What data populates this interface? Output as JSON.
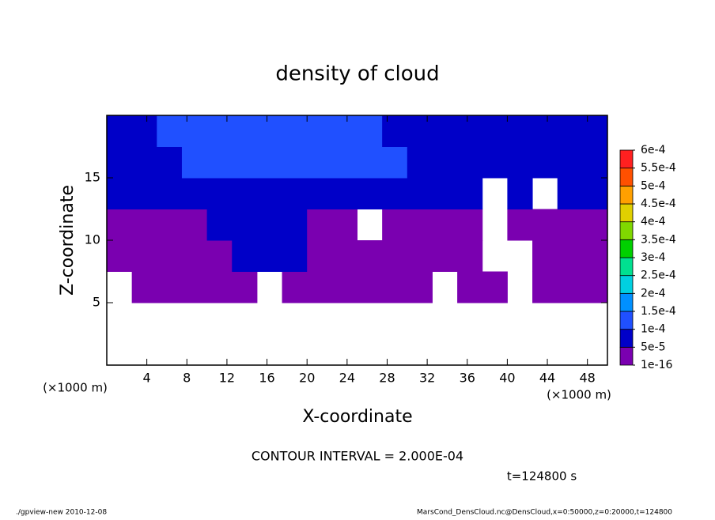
{
  "chart_data": {
    "type": "contour",
    "title": "density of cloud",
    "xlabel": "X-coordinate",
    "ylabel": "Z-coordinate",
    "x_unit": "(×1000 m)",
    "contour_interval": "CONTOUR INTERVAL = 2.000E-04",
    "time_label": "t=124800 s",
    "footer_left": "./gpview-new  2010-12-08",
    "footer_right": "MarsCond_DensCloud.nc@DensCloud,x=0:50000,z=0:20000,t=124800",
    "xlim": [
      0,
      50
    ],
    "ylim": [
      0,
      20
    ],
    "xticks": [
      4,
      8,
      12,
      16,
      20,
      24,
      28,
      32,
      36,
      40,
      44,
      48
    ],
    "yticks": [
      5,
      10,
      15
    ],
    "x": [
      1.25,
      3.75,
      6.25,
      8.75,
      11.25,
      13.75,
      16.25,
      18.75,
      21.25,
      23.75,
      26.25,
      28.75,
      31.25,
      33.75,
      36.25,
      38.75,
      41.25,
      43.75,
      46.25,
      48.75
    ],
    "z": [
      1.25,
      3.75,
      6.25,
      8.75,
      11.25,
      13.75,
      16.25,
      18.75
    ],
    "values": [
      [
        null,
        null,
        null,
        null,
        null,
        null,
        null,
        null,
        null,
        null,
        null,
        null,
        null,
        null,
        null,
        null,
        null,
        null,
        null,
        null
      ],
      [
        null,
        null,
        null,
        null,
        null,
        null,
        null,
        null,
        null,
        null,
        null,
        null,
        null,
        null,
        null,
        null,
        null,
        null,
        null,
        null
      ],
      [
        null,
        3e-05,
        3e-05,
        3e-05,
        3e-05,
        3e-05,
        null,
        3e-05,
        3e-05,
        3e-05,
        3e-05,
        3e-05,
        3e-05,
        null,
        3e-05,
        3e-05,
        null,
        3e-05,
        3e-05,
        3e-05
      ],
      [
        3e-05,
        3e-05,
        3e-05,
        3e-05,
        3e-05,
        8e-05,
        8e-05,
        8e-05,
        3e-05,
        3e-05,
        3e-05,
        3e-05,
        3e-05,
        3e-05,
        3e-05,
        null,
        null,
        3e-05,
        3e-05,
        3e-05
      ],
      [
        3e-05,
        3e-05,
        3e-05,
        3e-05,
        8e-05,
        8e-05,
        8e-05,
        8e-05,
        3e-05,
        3e-05,
        null,
        3e-05,
        3e-05,
        3e-05,
        3e-05,
        null,
        3e-05,
        3e-05,
        3e-05,
        3e-05
      ],
      [
        8e-05,
        8e-05,
        8e-05,
        8e-05,
        8e-05,
        8e-05,
        8e-05,
        8e-05,
        8e-05,
        8e-05,
        8e-05,
        8e-05,
        8e-05,
        8e-05,
        8e-05,
        null,
        8e-05,
        null,
        8e-05,
        8e-05
      ],
      [
        8e-05,
        8e-05,
        8e-05,
        0.00012,
        0.00012,
        0.00012,
        0.00012,
        0.00012,
        0.00012,
        0.00012,
        0.00012,
        0.00012,
        8e-05,
        8e-05,
        8e-05,
        8e-05,
        8e-05,
        8e-05,
        8e-05,
        8e-05
      ],
      [
        8e-05,
        8e-05,
        0.00012,
        0.00012,
        0.00012,
        0.00012,
        0.00012,
        0.00012,
        0.00012,
        0.00012,
        0.00012,
        8e-05,
        8e-05,
        8e-05,
        8e-05,
        8e-05,
        8e-05,
        8e-05,
        8e-05,
        8e-05
      ]
    ],
    "levels": [
      {
        "value": 1e-16,
        "label": "1e-16"
      },
      {
        "value": 5e-05,
        "label": "5e-5"
      },
      {
        "value": 0.0001,
        "label": "1e-4"
      },
      {
        "value": 0.00015,
        "label": "1.5e-4"
      },
      {
        "value": 0.0002,
        "label": "2e-4"
      },
      {
        "value": 0.00025,
        "label": "2.5e-4"
      },
      {
        "value": 0.0003,
        "label": "3e-4"
      },
      {
        "value": 0.00035,
        "label": "3.5e-4"
      },
      {
        "value": 0.0004,
        "label": "4e-4"
      },
      {
        "value": 0.00045,
        "label": "4.5e-4"
      },
      {
        "value": 0.0005,
        "label": "5e-4"
      },
      {
        "value": 0.00055,
        "label": "5.5e-4"
      },
      {
        "value": 0.0006,
        "label": "6e-4"
      }
    ],
    "colors": [
      "#7a00b0",
      "#0000c8",
      "#2050ff",
      "#0090ff",
      "#00d0e0",
      "#00e090",
      "#00d000",
      "#80d800",
      "#e0d000",
      "#ffa000",
      "#ff5000",
      "#ff2020",
      "#ff9090"
    ]
  }
}
